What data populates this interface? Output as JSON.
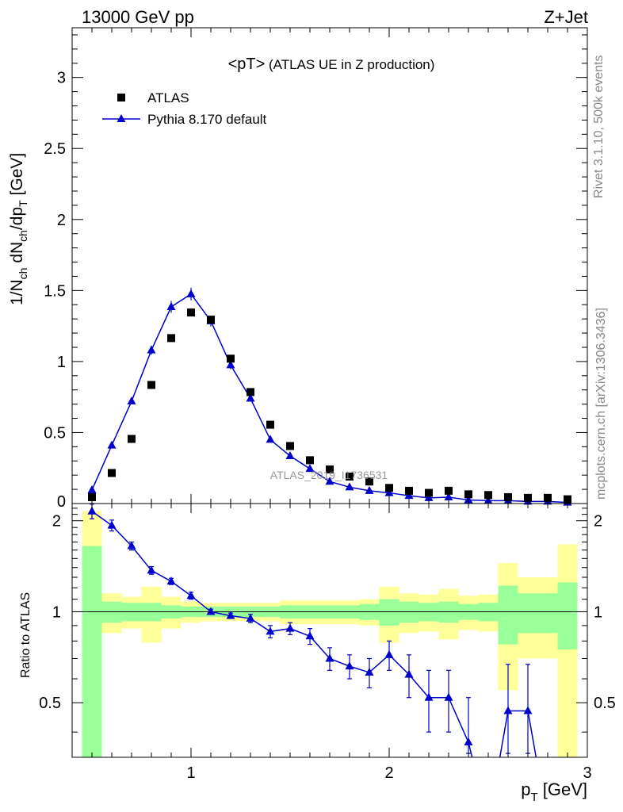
{
  "header": {
    "left": "13000 GeV pp",
    "right": "Z+Jet"
  },
  "side": {
    "rivet": "Rivet 3.1.10,  500k events",
    "mcplots": "mcplots.cern.ch [arXiv:1306.3436]"
  },
  "watermark": "ATLAS_2019_I1736531",
  "colors": {
    "data": "#000000",
    "mc": "#0000cc",
    "band_inner": "#99ff99",
    "band_outer": "#ffff99"
  },
  "chart_data": [
    {
      "type": "scatter",
      "title": "<pT> (ATLAS UE in Z production)",
      "ylabel_html": "1/N<sub>ch</sub> dN<sub>ch</sub>/dp<sub>T</sub> [GeV]",
      "ylabel": {
        "a": "1/N",
        "b": "ch",
        "c": " dN",
        "d": "ch",
        "e": "/dp",
        "f": "T",
        "g": " [GeV]"
      },
      "xlim": [
        0.4,
        3.0
      ],
      "ylim": [
        0,
        3.35
      ],
      "yticks": [
        0.5,
        1,
        1.5,
        2,
        2.5,
        3
      ],
      "ytick_labels": [
        "0.5",
        "1",
        "1.5",
        "2",
        "2.5",
        "3"
      ],
      "zero_label": "0",
      "legend": {
        "data": "ATLAS",
        "mc": "Pythia 8.170 default",
        "position": "top-left"
      },
      "x": [
        0.5,
        0.6,
        0.7,
        0.8,
        0.9,
        1.0,
        1.1,
        1.2,
        1.3,
        1.4,
        1.5,
        1.6,
        1.7,
        1.8,
        1.9,
        2.0,
        2.1,
        2.2,
        2.3,
        2.4,
        2.5,
        2.6,
        2.7,
        2.8,
        2.9
      ],
      "series": [
        {
          "name": "ATLAS",
          "values": [
            0.045,
            0.215,
            0.455,
            0.835,
            1.165,
            1.345,
            1.295,
            1.02,
            0.785,
            0.555,
            0.405,
            0.305,
            0.24,
            0.19,
            0.155,
            0.11,
            0.09,
            0.075,
            0.09,
            0.065,
            0.06,
            0.045,
            0.04,
            0.04,
            0.03
          ]
        },
        {
          "name": "Pythia 8.170 default",
          "values": [
            0.095,
            0.41,
            0.72,
            1.08,
            1.385,
            1.475,
            1.285,
            0.975,
            0.74,
            0.45,
            0.335,
            0.245,
            0.155,
            0.115,
            0.09,
            0.075,
            0.055,
            0.04,
            0.045,
            0.025,
            0.02,
            0.02,
            0.015,
            0.015,
            0.008
          ]
        }
      ]
    },
    {
      "type": "line",
      "ylabel": "Ratio to ATLAS",
      "xlabel": {
        "main": "p",
        "sub": "T",
        "unit": " [GeV]"
      },
      "xlim": [
        0.4,
        3.0
      ],
      "ylim": [
        0.33,
        2.28
      ],
      "xticks": [
        1,
        2,
        3
      ],
      "xtick_labels": [
        "1",
        "2",
        "3"
      ],
      "yticks": [
        0.5,
        1,
        2
      ],
      "ytick_labels": [
        "0.5",
        "1",
        "2"
      ],
      "x": [
        0.5,
        0.6,
        0.7,
        0.8,
        0.9,
        1.0,
        1.1,
        1.2,
        1.3,
        1.4,
        1.5,
        1.6,
        1.7,
        1.8,
        1.9,
        2.0,
        2.1,
        2.2,
        2.3,
        2.4,
        2.5,
        2.6,
        2.7,
        2.8,
        2.9
      ],
      "ratio": [
        2.15,
        1.93,
        1.65,
        1.37,
        1.26,
        1.13,
        1.0,
        0.97,
        0.95,
        0.86,
        0.88,
        0.83,
        0.7,
        0.66,
        0.63,
        0.72,
        0.62,
        0.52,
        0.52,
        0.37,
        0.2,
        0.47,
        0.47,
        0.2,
        0.2
      ],
      "ratio_err": [
        0.12,
        0.08,
        0.05,
        0.04,
        0.03,
        0.03,
        0.02,
        0.02,
        0.03,
        0.04,
        0.04,
        0.05,
        0.06,
        0.06,
        0.07,
        0.08,
        0.1,
        0.12,
        0.12,
        0.15,
        0.2,
        0.2,
        0.2,
        0.2,
        0.2
      ],
      "band_inner": [
        [
          0.3,
          1.65
        ],
        [
          0.92,
          1.08
        ],
        [
          0.93,
          1.07
        ],
        [
          0.93,
          1.07
        ],
        [
          0.95,
          1.05
        ],
        [
          0.96,
          1.04
        ],
        [
          0.96,
          1.04
        ],
        [
          0.96,
          1.04
        ],
        [
          0.96,
          1.04
        ],
        [
          0.96,
          1.04
        ],
        [
          0.95,
          1.05
        ],
        [
          0.95,
          1.05
        ],
        [
          0.95,
          1.05
        ],
        [
          0.95,
          1.05
        ],
        [
          0.94,
          1.06
        ],
        [
          0.9,
          1.1
        ],
        [
          0.92,
          1.08
        ],
        [
          0.93,
          1.07
        ],
        [
          0.92,
          1.08
        ],
        [
          0.94,
          1.06
        ],
        [
          0.93,
          1.07
        ],
        [
          0.78,
          1.22
        ],
        [
          0.85,
          1.15
        ],
        [
          0.85,
          1.15
        ],
        [
          0.75,
          1.25
        ]
      ],
      "band_outer": [
        [
          0.3,
          2.15
        ],
        [
          0.85,
          1.15
        ],
        [
          0.88,
          1.12
        ],
        [
          0.79,
          1.21
        ],
        [
          0.88,
          1.12
        ],
        [
          0.92,
          1.08
        ],
        [
          0.93,
          1.07
        ],
        [
          0.93,
          1.07
        ],
        [
          0.93,
          1.07
        ],
        [
          0.93,
          1.07
        ],
        [
          0.91,
          1.09
        ],
        [
          0.91,
          1.09
        ],
        [
          0.91,
          1.09
        ],
        [
          0.91,
          1.09
        ],
        [
          0.9,
          1.1
        ],
        [
          0.79,
          1.21
        ],
        [
          0.85,
          1.15
        ],
        [
          0.86,
          1.14
        ],
        [
          0.81,
          1.19
        ],
        [
          0.87,
          1.13
        ],
        [
          0.86,
          1.14
        ],
        [
          0.55,
          1.45
        ],
        [
          0.7,
          1.3
        ],
        [
          0.7,
          1.3
        ],
        [
          0.3,
          1.67
        ]
      ]
    }
  ]
}
